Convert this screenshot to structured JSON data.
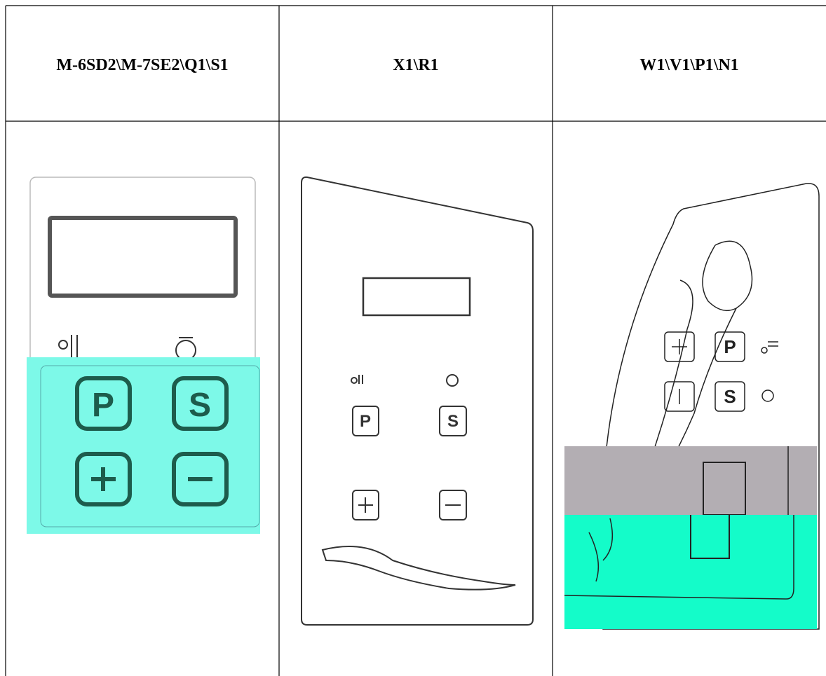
{
  "table": {
    "header": [
      "M-6SD2\\M-7SE2\\Q1\\S1",
      "X1\\R1",
      "W1\\V1\\P1\\N1"
    ]
  },
  "panels": [
    {
      "keys": [
        "P",
        "S"
      ]
    },
    {
      "keys": [
        "P",
        "S"
      ]
    },
    {
      "keys": [
        "P",
        "S"
      ]
    }
  ]
}
